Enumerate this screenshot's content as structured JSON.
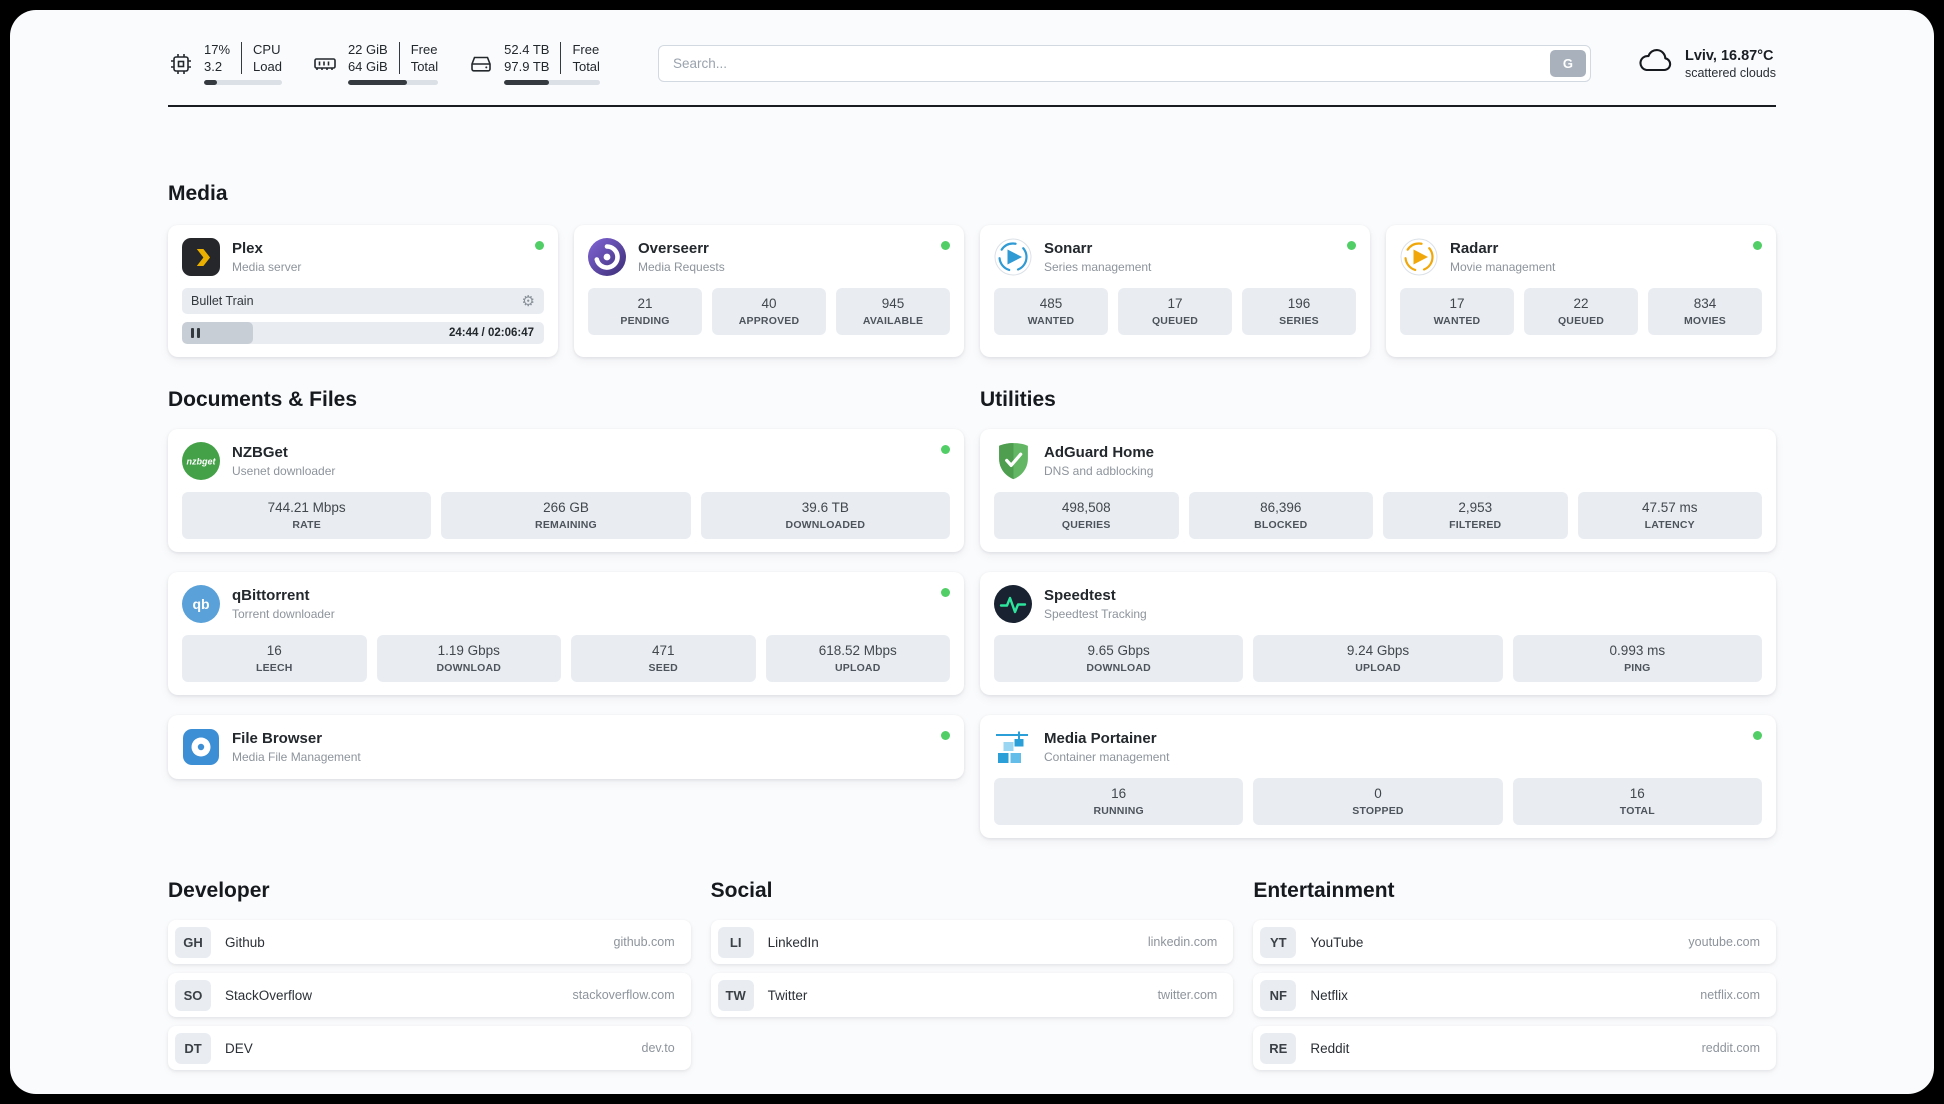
{
  "colors": {
    "status_online": "#51cf66",
    "stat_box_bg": "#e9edf2",
    "page_bg": "#fafbfd",
    "plex_yellow": "#ebaf00",
    "sonarr_blue": "#2f9ad3",
    "radarr_orange": "#f0a70a",
    "adguard_green": "#5cb85c"
  },
  "header": {
    "cpu": {
      "values": [
        "17%",
        "3.2"
      ],
      "labels": [
        "CPU",
        "Load"
      ],
      "usage_percent": 17
    },
    "ram": {
      "values": [
        "22 GiB",
        "64 GiB"
      ],
      "labels": [
        "Free",
        "Total"
      ],
      "usage_percent": 66
    },
    "disk": {
      "values": [
        "52.4 TB",
        "97.9 TB"
      ],
      "labels": [
        "Free",
        "Total"
      ],
      "usage_percent": 47
    },
    "search": {
      "placeholder": "Search...",
      "button_label": "G"
    },
    "weather": {
      "location": "Lviv, 16.87°C",
      "condition": "scattered clouds"
    }
  },
  "media_section": {
    "title": "Media",
    "plex": {
      "title": "Plex",
      "subtitle": "Media server",
      "now_playing": "Bullet Train",
      "time": "24:44 / 02:06:47",
      "progress_percent": 19.5
    },
    "overseerr": {
      "title": "Overseerr",
      "subtitle": "Media Requests",
      "stats": [
        {
          "value": "21",
          "label": "PENDING"
        },
        {
          "value": "40",
          "label": "APPROVED"
        },
        {
          "value": "945",
          "label": "AVAILABLE"
        }
      ]
    },
    "sonarr": {
      "title": "Sonarr",
      "subtitle": "Series management",
      "stats": [
        {
          "value": "485",
          "label": "WANTED"
        },
        {
          "value": "17",
          "label": "QUEUED"
        },
        {
          "value": "196",
          "label": "SERIES"
        }
      ]
    },
    "radarr": {
      "title": "Radarr",
      "subtitle": "Movie management",
      "stats": [
        {
          "value": "17",
          "label": "WANTED"
        },
        {
          "value": "22",
          "label": "QUEUED"
        },
        {
          "value": "834",
          "label": "MOVIES"
        }
      ]
    }
  },
  "documents_section": {
    "title": "Documents & Files",
    "nzbget": {
      "title": "NZBGet",
      "subtitle": "Usenet downloader",
      "stats": [
        {
          "value": "744.21 Mbps",
          "label": "RATE"
        },
        {
          "value": "266 GB",
          "label": "REMAINING"
        },
        {
          "value": "39.6 TB",
          "label": "DOWNLOADED"
        }
      ]
    },
    "qbittorrent": {
      "title": "qBittorrent",
      "subtitle": "Torrent downloader",
      "stats": [
        {
          "value": "16",
          "label": "LEECH"
        },
        {
          "value": "1.19 Gbps",
          "label": "DOWNLOAD"
        },
        {
          "value": "471",
          "label": "SEED"
        },
        {
          "value": "618.52 Mbps",
          "label": "UPLOAD"
        }
      ]
    },
    "filebrowser": {
      "title": "File Browser",
      "subtitle": "Media File Management"
    }
  },
  "utilities_section": {
    "title": "Utilities",
    "adguard": {
      "title": "AdGuard Home",
      "subtitle": "DNS and adblocking",
      "stats": [
        {
          "value": "498,508",
          "label": "QUERIES"
        },
        {
          "value": "86,396",
          "label": "BLOCKED"
        },
        {
          "value": "2,953",
          "label": "FILTERED"
        },
        {
          "value": "47.57 ms",
          "label": "LATENCY"
        }
      ]
    },
    "speedtest": {
      "title": "Speedtest",
      "subtitle": "Speedtest Tracking",
      "stats": [
        {
          "value": "9.65 Gbps",
          "label": "DOWNLOAD"
        },
        {
          "value": "9.24 Gbps",
          "label": "UPLOAD"
        },
        {
          "value": "0.993 ms",
          "label": "PING"
        }
      ]
    },
    "portainer": {
      "title": "Media Portainer",
      "subtitle": "Container management",
      "stats": [
        {
          "value": "16",
          "label": "RUNNING"
        },
        {
          "value": "0",
          "label": "STOPPED"
        },
        {
          "value": "16",
          "label": "TOTAL"
        }
      ]
    }
  },
  "bookmarks": {
    "developer": {
      "title": "Developer",
      "items": [
        {
          "abbr": "GH",
          "name": "Github",
          "url": "github.com"
        },
        {
          "abbr": "SO",
          "name": "StackOverflow",
          "url": "stackoverflow.com"
        },
        {
          "abbr": "DT",
          "name": "DEV",
          "url": "dev.to"
        }
      ]
    },
    "social": {
      "title": "Social",
      "items": [
        {
          "abbr": "LI",
          "name": "LinkedIn",
          "url": "linkedin.com"
        },
        {
          "abbr": "TW",
          "name": "Twitter",
          "url": "twitter.com"
        }
      ]
    },
    "entertainment": {
      "title": "Entertainment",
      "items": [
        {
          "abbr": "YT",
          "name": "YouTube",
          "url": "youtube.com"
        },
        {
          "abbr": "NF",
          "name": "Netflix",
          "url": "netflix.com"
        },
        {
          "abbr": "RE",
          "name": "Reddit",
          "url": "reddit.com"
        }
      ]
    }
  }
}
